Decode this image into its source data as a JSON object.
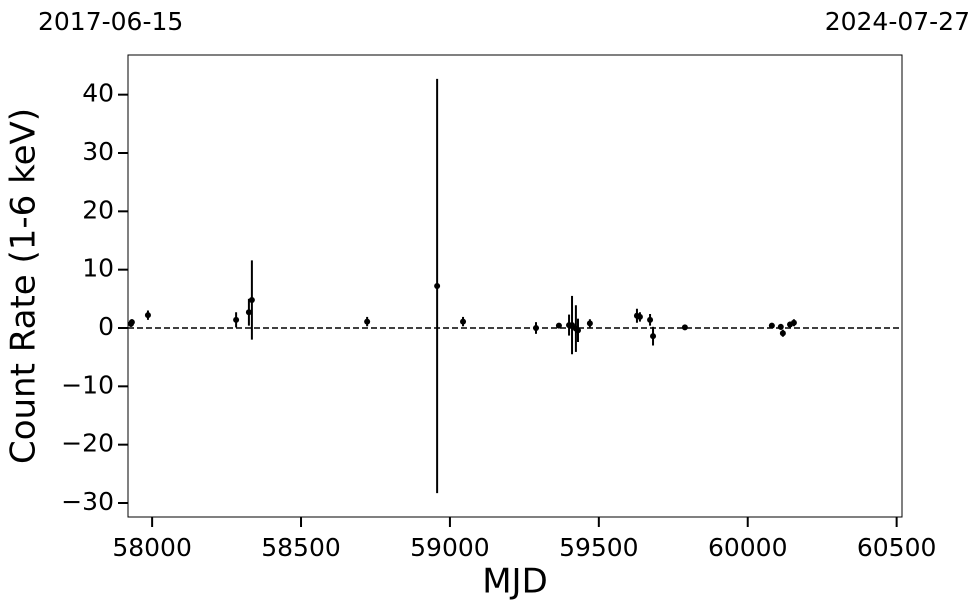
{
  "chart_data": {
    "type": "scatter",
    "start_label": "2017-06-15",
    "end_label": "2024-07-27",
    "xlabel": "MJD",
    "ylabel": "Count Rate (1-6 keV)",
    "x": [
      57929,
      57932,
      57986,
      58282,
      58325,
      58335,
      58722,
      58957,
      59044,
      59289,
      59366,
      59400,
      59410,
      59423,
      59430,
      59470,
      59628,
      59638,
      59672,
      59682,
      59789,
      60081,
      60111,
      60118,
      60142,
      60155
    ],
    "values": [
      0.7,
      1.0,
      2.2,
      1.4,
      2.7,
      4.8,
      1.1,
      7.2,
      1.1,
      0.0,
      0.4,
      0.5,
      0.5,
      -0.1,
      -0.4,
      0.8,
      2.1,
      1.9,
      1.4,
      -1.4,
      0.1,
      0.4,
      0.2,
      -0.9,
      0.6,
      0.9
    ],
    "errors": [
      0.5,
      0.5,
      0.8,
      1.3,
      2.3,
      6.8,
      0.8,
      35.5,
      0.8,
      1.0,
      0.3,
      1.8,
      5.0,
      4.0,
      2.0,
      0.7,
      1.2,
      0.8,
      1.0,
      1.6,
      0.3,
      0.3,
      0.5,
      0.6,
      0.5,
      0.6
    ],
    "color": "#000000",
    "reference_line": 0,
    "xlim": [
      57919,
      60518
    ],
    "xticks": [
      58000,
      58500,
      59000,
      59500,
      60000,
      60500
    ],
    "ylim": [
      -32.4,
      46.8
    ],
    "yticks": [
      {
        "value": -30,
        "label": "−30"
      },
      {
        "value": -20,
        "label": "−20"
      },
      {
        "value": -10,
        "label": "−10"
      },
      0,
      10,
      20,
      30,
      40
    ]
  }
}
